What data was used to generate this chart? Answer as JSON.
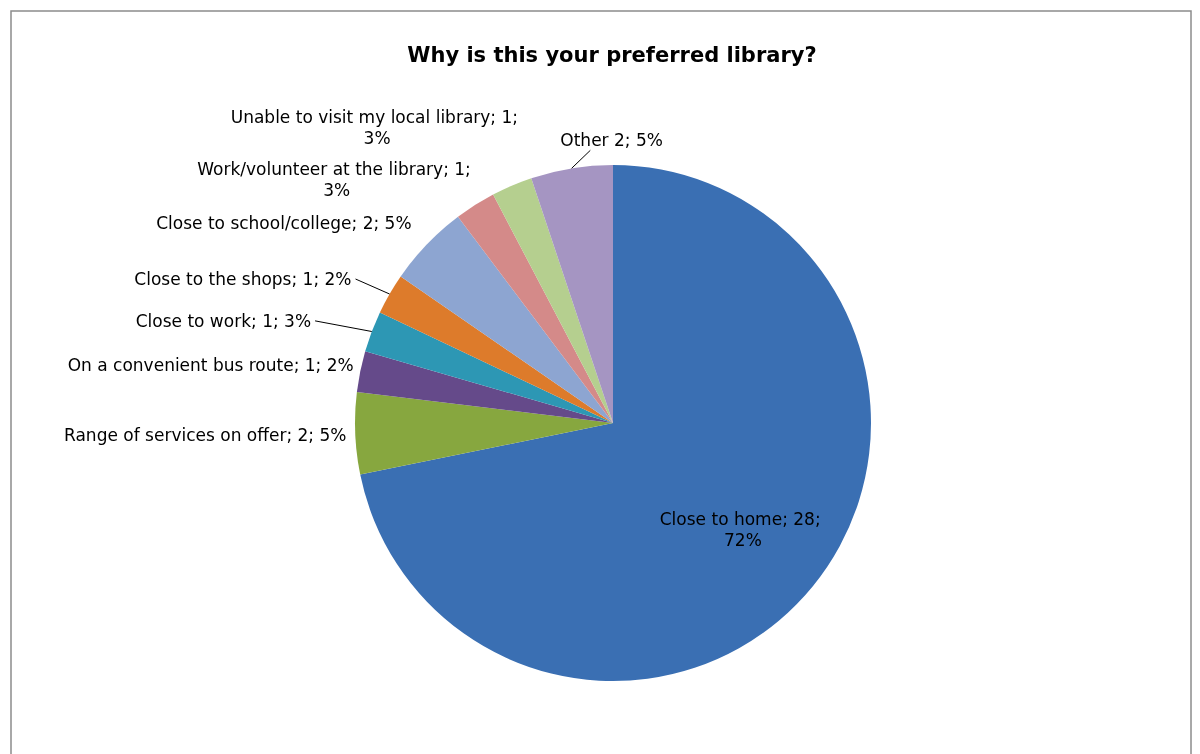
{
  "chart_data": {
    "type": "pie",
    "title": "Why is this your preferred library?",
    "categories": [
      "Close to home",
      "Range of services on offer",
      "On a convenient bus route",
      "Close to work",
      "Close to the shops",
      "Close to school/college",
      "Work/volunteer at the library",
      "Unable to visit my local library",
      "Other"
    ],
    "values": [
      28,
      2,
      1,
      1,
      1,
      2,
      1,
      1,
      2
    ],
    "value_labels": [
      ";  28;  72%",
      ";  2;  5%",
      ";  1;  2%",
      ";  1;  3%",
      ";  1;  2%",
      ";  2;  5%",
      ";  1;  3%",
      ";  1;  3%",
      " 2; 5%"
    ],
    "colors": [
      "#3a6fb3",
      "#87a73f",
      "#654a8a",
      "#2d97b4",
      "#dd7b2b",
      "#8da5d1",
      "#d48a89",
      "#b5cf8f",
      "#a595c2"
    ]
  }
}
